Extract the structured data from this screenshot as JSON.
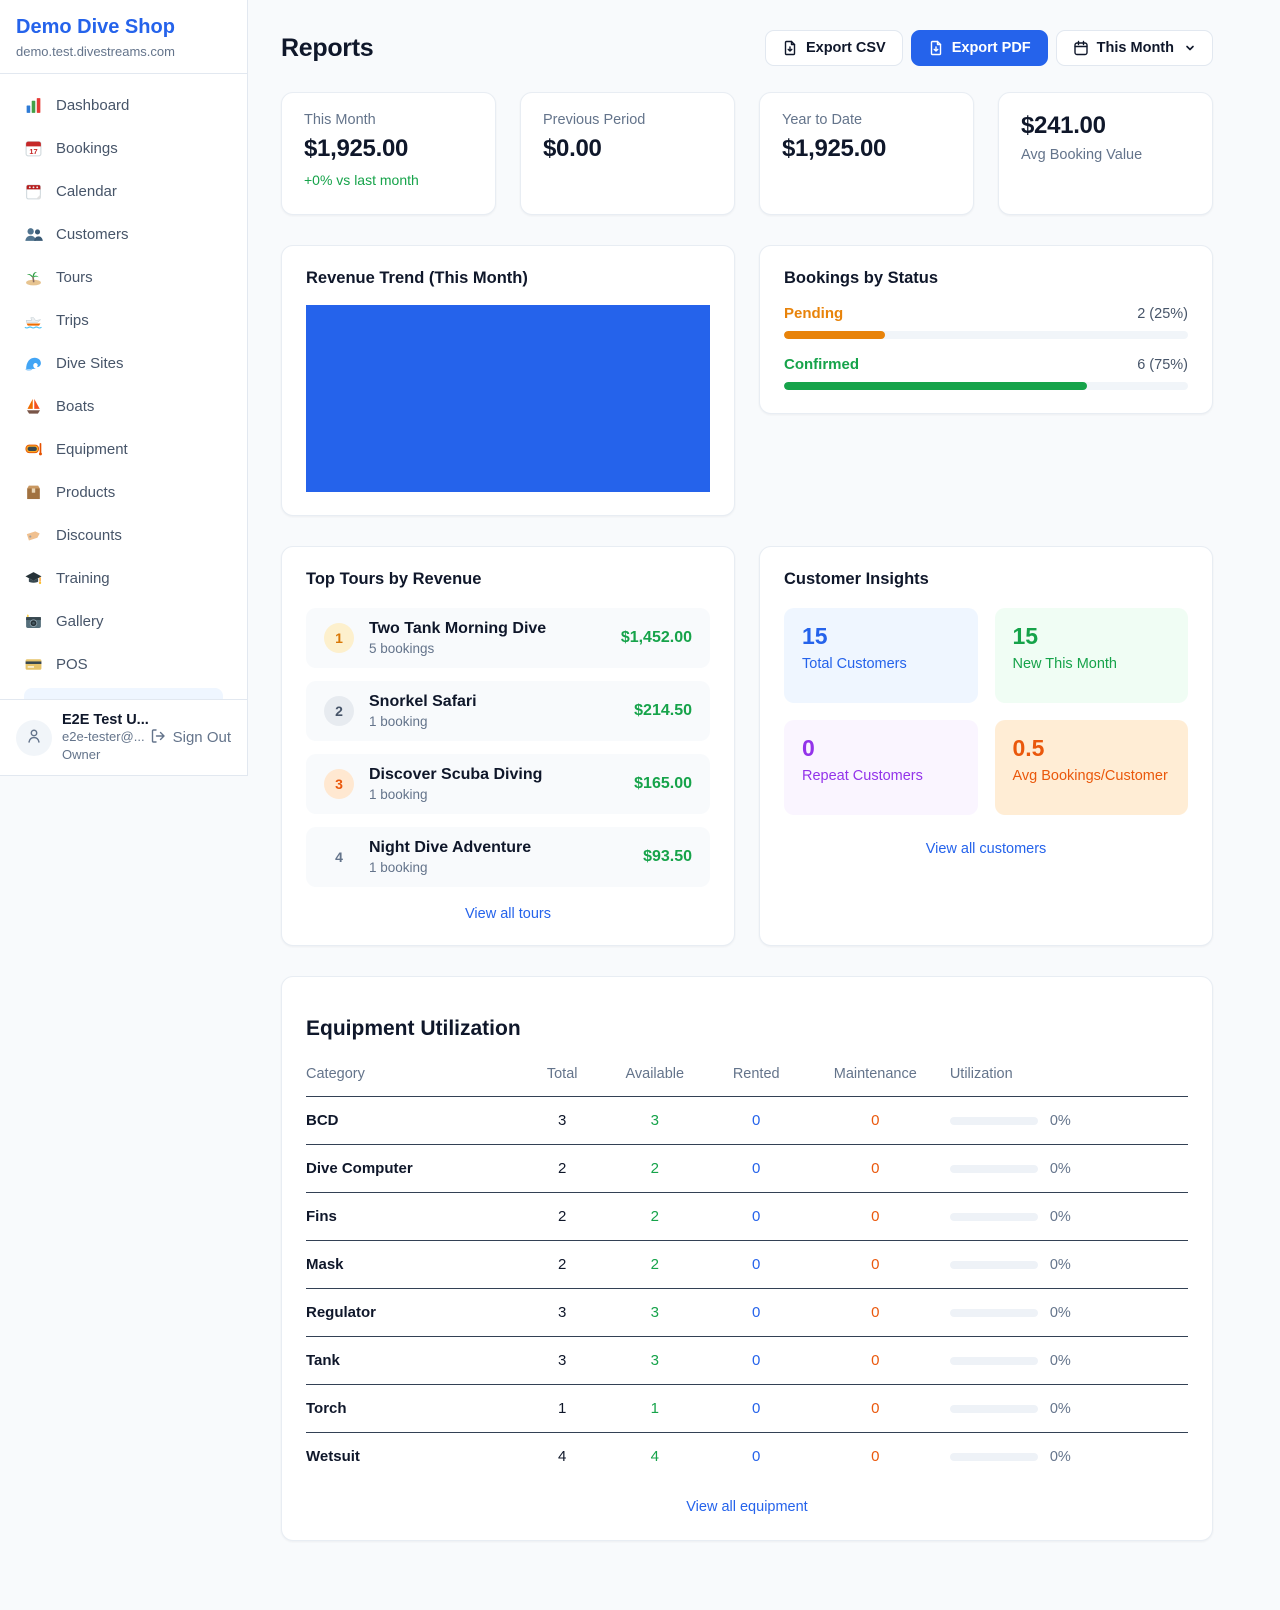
{
  "sidebar": {
    "brand": {
      "name": "Demo Dive Shop",
      "domain": "demo.test.divestreams.com"
    },
    "items": [
      {
        "label": "Dashboard",
        "icon": "dashboard"
      },
      {
        "label": "Bookings",
        "icon": "bookings"
      },
      {
        "label": "Calendar",
        "icon": "calendar"
      },
      {
        "label": "Customers",
        "icon": "customers"
      },
      {
        "label": "Tours",
        "icon": "tours"
      },
      {
        "label": "Trips",
        "icon": "trips"
      },
      {
        "label": "Dive Sites",
        "icon": "dive-sites"
      },
      {
        "label": "Boats",
        "icon": "boats"
      },
      {
        "label": "Equipment",
        "icon": "equipment"
      },
      {
        "label": "Products",
        "icon": "products"
      },
      {
        "label": "Discounts",
        "icon": "discounts"
      },
      {
        "label": "Training",
        "icon": "training"
      },
      {
        "label": "Gallery",
        "icon": "gallery"
      },
      {
        "label": "POS",
        "icon": "pos"
      }
    ],
    "user": {
      "name": "E2E Test U...",
      "email": "e2e-tester@...",
      "role": "Owner",
      "sign_out": "Sign Out"
    }
  },
  "header": {
    "title": "Reports",
    "export_csv": "Export CSV",
    "export_pdf": "Export PDF",
    "period": "This Month",
    "accent_color": "#2563eb"
  },
  "stats": [
    {
      "label": "This Month",
      "value": "$1,925.00",
      "delta": "+0% vs last month",
      "delta_color": "#16a34a",
      "order": "label-first"
    },
    {
      "label": "Previous Period",
      "value": "$0.00",
      "order": "label-first"
    },
    {
      "label": "Year to Date",
      "value": "$1,925.00",
      "order": "label-first"
    },
    {
      "label": "Avg Booking Value",
      "value": "$241.00",
      "order": "value-first"
    }
  ],
  "revenue_trend": {
    "title": "Revenue Trend (This Month)",
    "bar_color": "#2563eb",
    "fill_percent": 100
  },
  "bookings_by_status": {
    "title": "Bookings by Status",
    "statuses": [
      {
        "label": "Pending",
        "count": "2 (25%)",
        "percent": 25,
        "color": "#e8830a"
      },
      {
        "label": "Confirmed",
        "count": "6 (75%)",
        "percent": 75,
        "color": "#16a34a"
      }
    ]
  },
  "top_tours": {
    "title": "Top Tours by Revenue",
    "items": [
      {
        "rank": "1",
        "name": "Two Tank Morning Dive",
        "bookings": "5 bookings",
        "revenue": "$1,452.00",
        "badge_bg": "#fdf0cd",
        "badge_color": "#d97706"
      },
      {
        "rank": "2",
        "name": "Snorkel Safari",
        "bookings": "1 booking",
        "revenue": "$214.50",
        "badge_bg": "#e7ebf0",
        "badge_color": "#475569"
      },
      {
        "rank": "3",
        "name": "Discover Scuba Diving",
        "bookings": "1 booking",
        "revenue": "$165.00",
        "badge_bg": "#ffe8d1",
        "badge_color": "#ea580c"
      },
      {
        "rank": "4",
        "name": "Night Dive Adventure",
        "bookings": "1 booking",
        "revenue": "$93.50",
        "badge_bg": "transparent",
        "badge_color": "#64748b"
      }
    ],
    "view_all": "View all tours"
  },
  "customer_insights": {
    "title": "Customer Insights",
    "tiles": [
      {
        "value": "15",
        "label": "Total Customers",
        "bg": "#eff6ff",
        "color": "#2563eb"
      },
      {
        "value": "15",
        "label": "New This Month",
        "bg": "#f0fdf4",
        "color": "#16a34a"
      },
      {
        "value": "0",
        "label": "Repeat Customers",
        "bg": "#faf5ff",
        "color": "#9333ea"
      },
      {
        "value": "0.5",
        "label": "Avg Bookings/Customer",
        "bg": "#ffedd5",
        "color": "#ea580c"
      }
    ],
    "view_all": "View all customers"
  },
  "equipment": {
    "title": "Equipment Utilization",
    "columns": [
      "Category",
      "Total",
      "Available",
      "Rented",
      "Maintenance",
      "Utilization"
    ],
    "rows": [
      {
        "category": "BCD",
        "total": "3",
        "available": "3",
        "rented": "0",
        "maintenance": "0",
        "utilization": "0%",
        "utilization_pct": 0
      },
      {
        "category": "Dive Computer",
        "total": "2",
        "available": "2",
        "rented": "0",
        "maintenance": "0",
        "utilization": "0%",
        "utilization_pct": 0
      },
      {
        "category": "Fins",
        "total": "2",
        "available": "2",
        "rented": "0",
        "maintenance": "0",
        "utilization": "0%",
        "utilization_pct": 0
      },
      {
        "category": "Mask",
        "total": "2",
        "available": "2",
        "rented": "0",
        "maintenance": "0",
        "utilization": "0%",
        "utilization_pct": 0
      },
      {
        "category": "Regulator",
        "total": "3",
        "available": "3",
        "rented": "0",
        "maintenance": "0",
        "utilization": "0%",
        "utilization_pct": 0
      },
      {
        "category": "Tank",
        "total": "3",
        "available": "3",
        "rented": "0",
        "maintenance": "0",
        "utilization": "0%",
        "utilization_pct": 0
      },
      {
        "category": "Torch",
        "total": "1",
        "available": "1",
        "rented": "0",
        "maintenance": "0",
        "utilization": "0%",
        "utilization_pct": 0
      },
      {
        "category": "Wetsuit",
        "total": "4",
        "available": "4",
        "rented": "0",
        "maintenance": "0",
        "utilization": "0%",
        "utilization_pct": 0
      }
    ],
    "view_all": "View all equipment",
    "status_colors": {
      "available": "#16a34a",
      "rented": "#2563eb",
      "maintenance": "#ea580c"
    }
  }
}
